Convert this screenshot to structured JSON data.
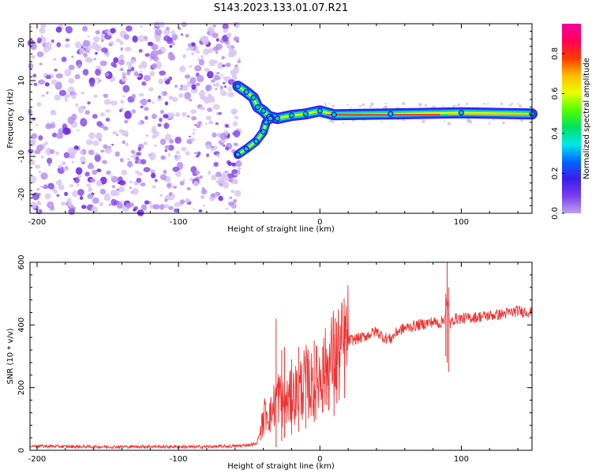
{
  "title": "S143.2023.133.01.07.R21",
  "chart_data": [
    {
      "type": "heatmap",
      "xlabel": "Height of straight line (km)",
      "ylabel": "Frequency (Hz)",
      "xlim": [
        -205,
        150
      ],
      "ylim": [
        -25,
        25
      ],
      "x_ticks": [
        -200,
        -100,
        0,
        100
      ],
      "y_ticks": [
        -20,
        -10,
        0,
        10,
        20
      ],
      "colorbar": {
        "label": "Normalized spectral amplitude",
        "range": [
          0,
          0.95
        ],
        "ticks": [
          0.0,
          0.2,
          0.4,
          0.6,
          0.8
        ],
        "colormap": [
          "#b9a2ee",
          "#7c3ded",
          "#3b1ee8",
          "#0066ff",
          "#00e8e8",
          "#00e060",
          "#52ff00",
          "#e8ff00",
          "#ffbb00",
          "#ff3a00",
          "#ff0055",
          "#f0009a"
        ]
      },
      "signal_ridge": [
        {
          "x": -58,
          "f": 8.5
        },
        {
          "x": -52,
          "f": 7
        },
        {
          "x": -47,
          "f": 5.5
        },
        {
          "x": -44,
          "f": 3
        },
        {
          "x": -40,
          "f": 2
        },
        {
          "x": -36,
          "f": 0.5
        },
        {
          "x": -30,
          "f": 0
        },
        {
          "x": -20,
          "f": 0.8
        },
        {
          "x": -10,
          "f": 1.2
        },
        {
          "x": 0,
          "f": 2
        },
        {
          "x": 10,
          "f": 1
        },
        {
          "x": 50,
          "f": 1.2
        },
        {
          "x": 100,
          "f": 1.5
        },
        {
          "x": 150,
          "f": 1.2
        }
      ],
      "lower_branch": [
        {
          "x": -58,
          "f": -9.5
        },
        {
          "x": -52,
          "f": -8
        },
        {
          "x": -45,
          "f": -6
        },
        {
          "x": -40,
          "f": -3.5
        },
        {
          "x": -38,
          "f": -1
        },
        {
          "x": -35,
          "f": 0
        }
      ],
      "noise_region": [
        -205,
        -60
      ]
    },
    {
      "type": "line",
      "xlabel": "Height of straight line (km)",
      "ylabel": "SNR (10 * v/v)",
      "xlim": [
        -205,
        150
      ],
      "ylim": [
        0,
        600
      ],
      "x_ticks": [
        -200,
        -100,
        0,
        100
      ],
      "y_ticks": [
        0,
        200,
        400,
        600
      ],
      "line_color": "#ee3333",
      "x": [
        -205,
        -180,
        -150,
        -120,
        -90,
        -60,
        -45,
        -42,
        -38,
        -35,
        -32,
        -30,
        -25,
        -20,
        -15,
        -10,
        -5,
        0,
        5,
        10,
        15,
        20,
        30,
        40,
        45,
        50,
        55,
        60,
        70,
        80,
        85,
        88,
        90,
        92,
        95,
        100,
        110,
        120,
        130,
        140,
        150
      ],
      "y": [
        14,
        12,
        11,
        12,
        11,
        13,
        20,
        60,
        130,
        110,
        150,
        180,
        140,
        170,
        190,
        220,
        200,
        240,
        260,
        300,
        310,
        350,
        360,
        380,
        360,
        355,
        380,
        390,
        400,
        410,
        405,
        420,
        480,
        400,
        420,
        420,
        425,
        430,
        435,
        445,
        440
      ],
      "spikes": [
        {
          "x": -31,
          "y_min": 10,
          "y_max": 420
        },
        {
          "x": -27,
          "y_min": 30,
          "y_max": 320
        },
        {
          "x": -25,
          "y_min": 40,
          "y_max": 330
        },
        {
          "x": -20,
          "y_min": 50,
          "y_max": 290
        },
        {
          "x": -15,
          "y_min": 60,
          "y_max": 330
        },
        {
          "x": -10,
          "y_min": 70,
          "y_max": 300
        },
        {
          "x": -4,
          "y_min": 90,
          "y_max": 350
        },
        {
          "x": 2,
          "y_min": 120,
          "y_max": 330
        },
        {
          "x": 10,
          "y_min": 110,
          "y_max": 370
        },
        {
          "x": 12,
          "y_min": 150,
          "y_max": 360
        },
        {
          "x": 89,
          "y_min": 300,
          "y_max": 500
        },
        {
          "x": 90,
          "y_min": 280,
          "y_max": 600
        },
        {
          "x": 91,
          "y_min": 250,
          "y_max": 520
        }
      ]
    }
  ]
}
